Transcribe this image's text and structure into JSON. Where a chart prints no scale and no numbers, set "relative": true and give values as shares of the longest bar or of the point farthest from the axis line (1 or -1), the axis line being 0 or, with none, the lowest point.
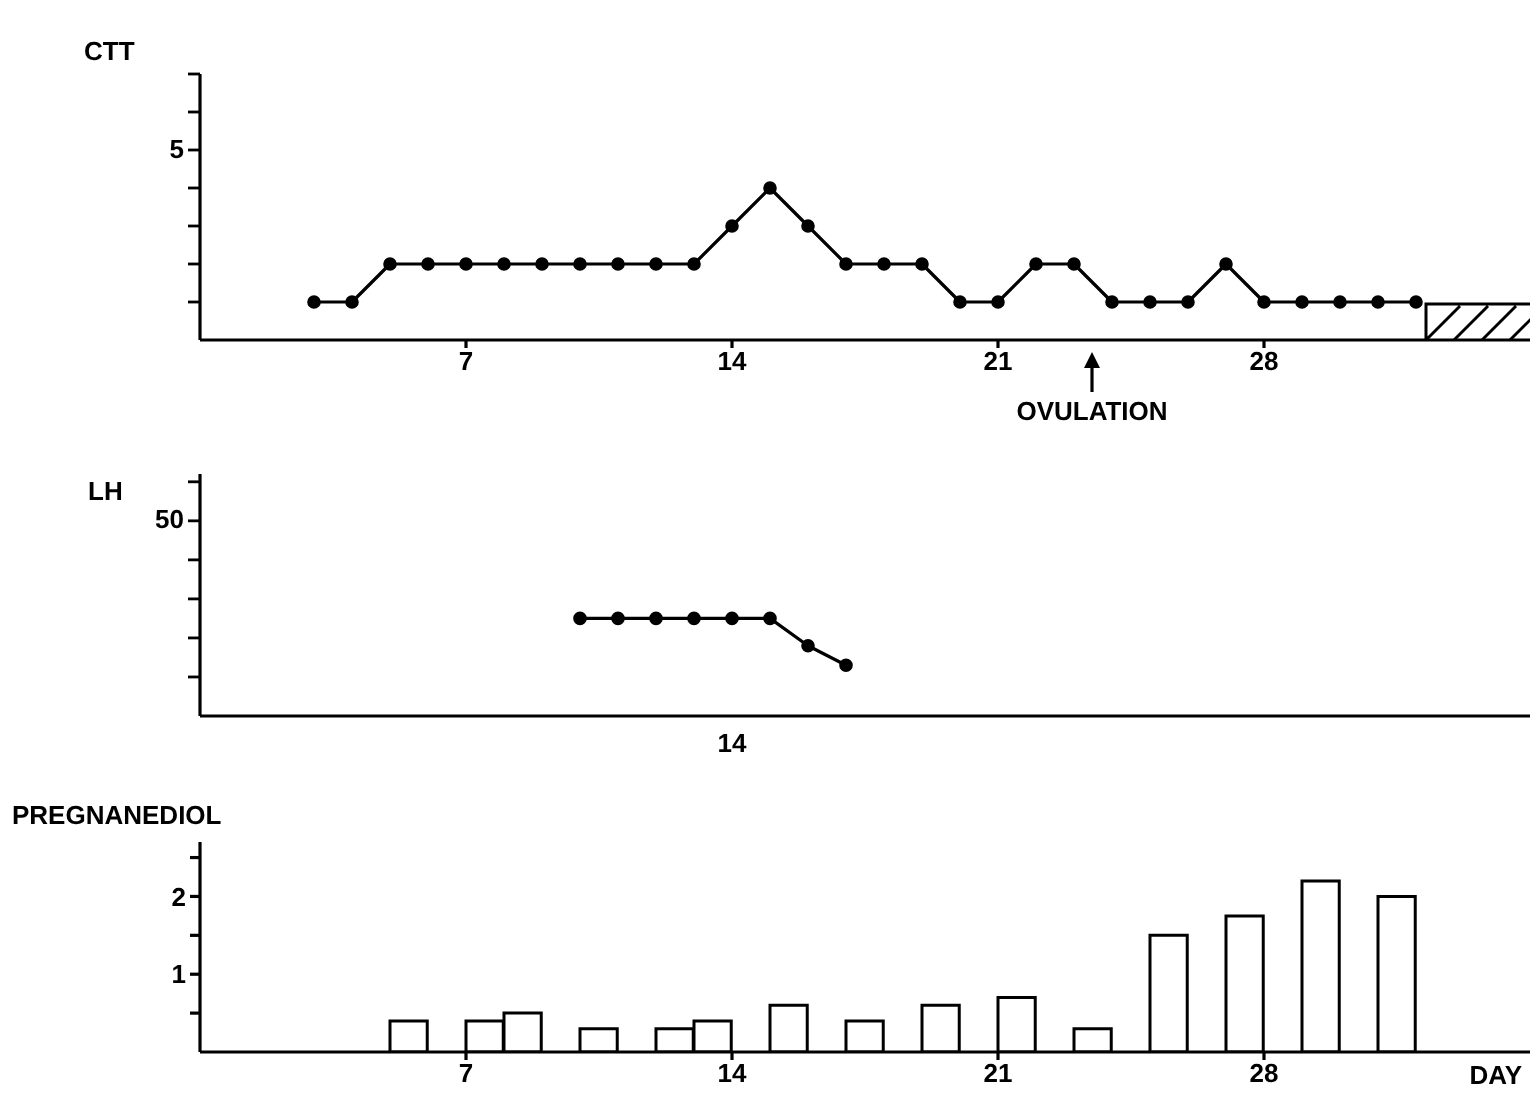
{
  "chart_data": [
    {
      "type": "line",
      "ylabel": "CTT",
      "x": [
        3,
        4,
        5,
        6,
        7,
        8,
        9,
        10,
        11,
        12,
        13,
        14,
        15,
        16,
        17,
        18,
        19,
        20,
        21,
        22,
        23,
        24,
        25,
        26,
        27,
        28,
        29,
        30,
        31,
        32
      ],
      "series": [
        {
          "color": "#000000",
          "values": [
            0.25,
            0.25,
            0.5,
            0.5,
            0.5,
            0.5,
            0.5,
            0.5,
            0.5,
            0.5,
            0.5,
            0.75,
            1,
            0.75,
            0.5,
            0.5,
            0.5,
            0.25,
            0.25,
            0.5,
            0.5,
            0.25,
            0.25,
            0.25,
            0.5,
            0.25,
            0.25,
            0.25,
            0.25,
            0.25
          ]
        }
      ],
      "relative": true,
      "xlim": [
        0,
        35
      ],
      "xticks": [
        7,
        14,
        21,
        28
      ],
      "marker": "circle",
      "line_style": "solid",
      "annotations": [
        "5",
        "OVULATION"
      ]
    },
    {
      "type": "line",
      "ylabel": "LH",
      "categories": [
        null,
        null,
        null,
        null,
        null,
        null,
        null,
        null
      ],
      "series": [
        {
          "color": "#000000",
          "values": [
            1,
            1,
            1,
            1,
            1,
            1,
            0.72,
            0.52
          ]
        }
      ],
      "relative": true,
      "marker": "circle",
      "line_style": "solid",
      "annotations": [
        "50",
        "14"
      ]
    },
    {
      "type": "bar",
      "ylabel": "PREGNANEDIOL",
      "xlabel": "DAY",
      "x": [
        5.5,
        7.5,
        8.5,
        10.5,
        12.5,
        13.5,
        15.5,
        17.5,
        19.5,
        21.5,
        23.5,
        25.5,
        27.5,
        29.5,
        31.5
      ],
      "series": [
        {
          "color": "#ffffff",
          "values": [
            0.4,
            0.4,
            0.5,
            0.3,
            0.3,
            0.4,
            0.6,
            0.4,
            0.6,
            0.7,
            0.3,
            1.5,
            1.75,
            2.2,
            2.0
          ]
        }
      ],
      "xlim": [
        0,
        35
      ],
      "xticks": [
        7,
        14,
        21,
        28
      ],
      "ylim": [
        0,
        2.7
      ],
      "yticks": [
        {
          "value": 0.5,
          "label": null
        },
        1,
        {
          "value": 1.5,
          "label": null
        },
        2,
        {
          "value": 2.5,
          "label": null
        }
      ]
    }
  ]
}
